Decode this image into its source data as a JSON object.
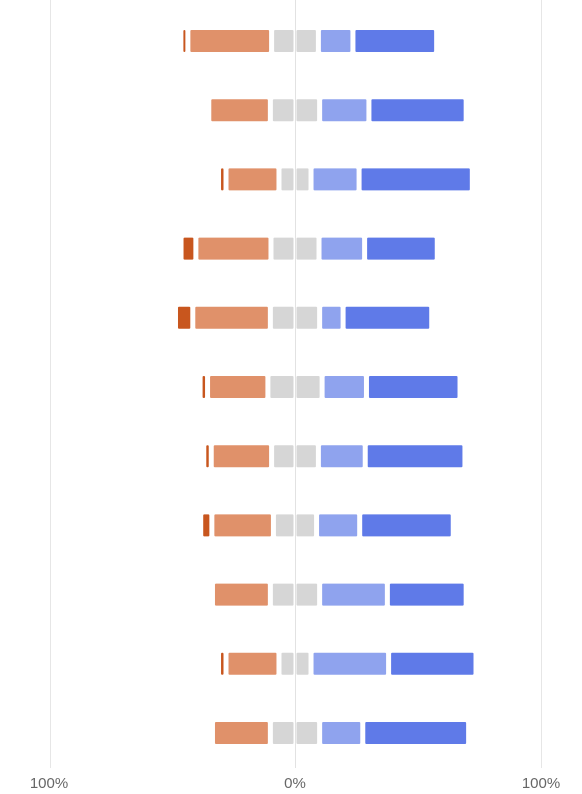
{
  "chart_data": {
    "type": "bar",
    "subtype": "diverging-stacked-horizontal",
    "title": "",
    "xlabel": "",
    "ylabel": "",
    "xlim": [
      -100,
      100
    ],
    "x_ticks": [
      {
        "value": -100,
        "label": "100%"
      },
      {
        "value": 0,
        "label": "0%"
      },
      {
        "value": 100,
        "label": "100%"
      }
    ],
    "legend": "none",
    "grid": false,
    "bar_count": 11,
    "series_colors": {
      "strong_negative": "#c8561e",
      "negative": "#e0916a",
      "neutral": "#d6d6d6",
      "positive": "#8fa3ee",
      "strong_positive": "#5f7ae8"
    },
    "rows": [
      {
        "strong_negative": 0.8,
        "negative": 32.0,
        "neutral": 17.0,
        "positive": 12.0,
        "strong_positive": 32.0
      },
      {
        "strong_negative": 0.0,
        "negative": 23.0,
        "neutral": 18.0,
        "positive": 18.0,
        "strong_positive": 37.5
      },
      {
        "strong_negative": 1.0,
        "negative": 19.5,
        "neutral": 11.0,
        "positive": 17.5,
        "strong_positive": 44.0
      },
      {
        "strong_negative": 4.0,
        "negative": 28.5,
        "neutral": 17.5,
        "positive": 16.5,
        "strong_positive": 27.5
      },
      {
        "strong_negative": 5.0,
        "negative": 29.5,
        "neutral": 18.0,
        "positive": 7.5,
        "strong_positive": 34.0
      },
      {
        "strong_negative": 1.0,
        "negative": 22.5,
        "neutral": 20.0,
        "positive": 16.0,
        "strong_positive": 36.0
      },
      {
        "strong_negative": 1.0,
        "negative": 22.5,
        "neutral": 17.0,
        "positive": 17.0,
        "strong_positive": 38.5
      },
      {
        "strong_negative": 2.5,
        "negative": 23.0,
        "neutral": 15.5,
        "positive": 15.5,
        "strong_positive": 36.0
      },
      {
        "strong_negative": 0.0,
        "negative": 21.5,
        "neutral": 18.0,
        "positive": 25.5,
        "strong_positive": 30.0
      },
      {
        "strong_negative": 1.0,
        "negative": 19.5,
        "neutral": 11.0,
        "positive": 29.5,
        "strong_positive": 33.5
      },
      {
        "strong_negative": 0.0,
        "negative": 21.5,
        "neutral": 18.0,
        "positive": 15.5,
        "strong_positive": 41.0
      }
    ]
  }
}
